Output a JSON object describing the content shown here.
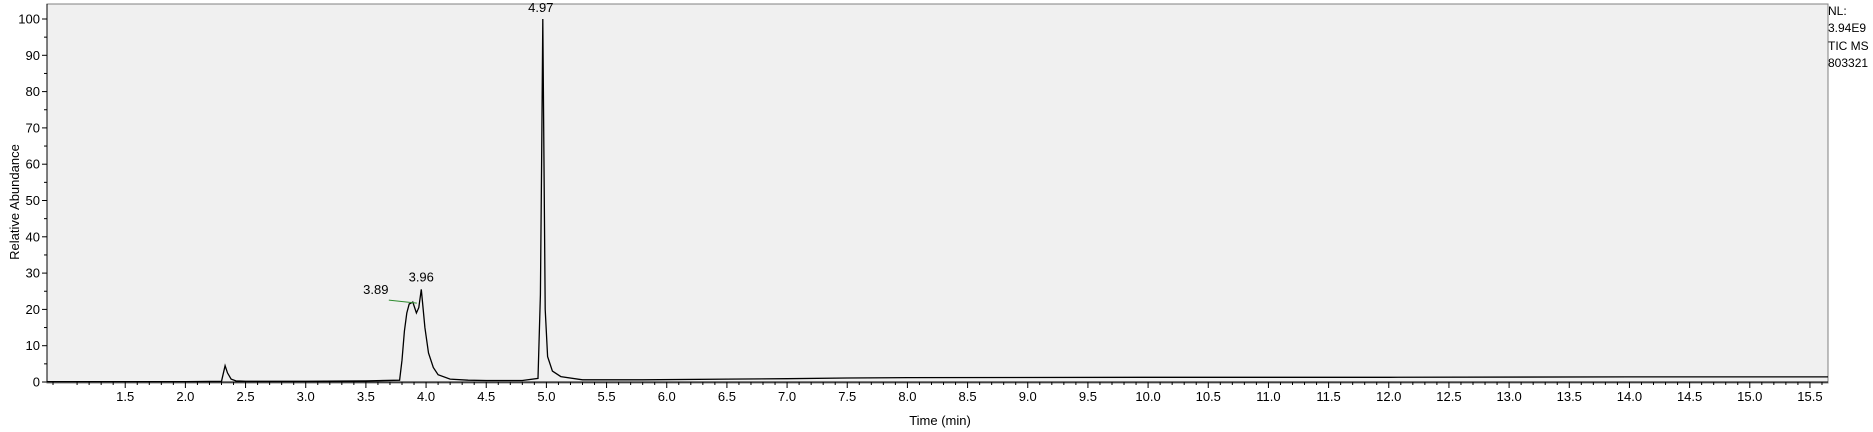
{
  "header": {
    "info_lines": [
      "NL:",
      "3.94E9",
      "TIC  MS",
      "803321"
    ]
  },
  "chart_data": {
    "type": "line",
    "title": "",
    "xlabel": "Time (min)",
    "ylabel": "Relative Abundance",
    "xlim": [
      0.85,
      15.65
    ],
    "ylim": [
      0,
      100
    ],
    "x_ticks": [
      1.5,
      2.0,
      2.5,
      3.0,
      3.5,
      4.0,
      4.5,
      5.0,
      5.5,
      6.0,
      6.5,
      7.0,
      7.5,
      8.0,
      8.5,
      9.0,
      9.5,
      10.0,
      10.5,
      11.0,
      11.5,
      12.0,
      12.5,
      13.0,
      13.5,
      14.0,
      14.5,
      15.0,
      15.5
    ],
    "x_tick_labels": [
      "1.5",
      "2.0",
      "2.5",
      "3.0",
      "3.5",
      "4.0",
      "4.5",
      "5.0",
      "5.5",
      "6.0",
      "6.5",
      "7.0",
      "7.5",
      "8.0",
      "8.5",
      "9.0",
      "9.5",
      "10.0",
      "10.5",
      "11.0",
      "11.5",
      "12.0",
      "12.5",
      "13.0",
      "13.5",
      "14.0",
      "14.5",
      "15.0",
      "15.5"
    ],
    "y_ticks": [
      0,
      10,
      20,
      30,
      40,
      50,
      60,
      70,
      80,
      90,
      100
    ],
    "y_tick_labels": [
      "0",
      "10",
      "20",
      "30",
      "40",
      "50",
      "60",
      "70",
      "80",
      "90",
      "100"
    ],
    "grid": false,
    "series": [
      {
        "x": [
          0.85,
          2.0,
          2.3,
          2.33,
          2.35,
          2.38,
          2.42,
          2.5,
          3.0,
          3.5,
          3.78,
          3.8,
          3.82,
          3.84,
          3.86,
          3.89,
          3.92,
          3.94,
          3.96,
          3.97,
          3.99,
          4.02,
          4.06,
          4.1,
          4.2,
          4.35,
          4.5,
          4.8,
          4.93,
          4.95,
          4.96,
          4.97,
          4.98,
          4.99,
          5.01,
          5.05,
          5.12,
          5.3,
          5.8,
          6.5,
          7.0,
          7.5,
          8.0,
          10.0,
          12.0,
          14.0,
          15.65
        ],
        "y": [
          0.1,
          0.1,
          0.2,
          4.5,
          2.5,
          0.8,
          0.3,
          0.2,
          0.2,
          0.3,
          0.5,
          6.0,
          14.0,
          19.0,
          21.5,
          22.0,
          19.0,
          20.5,
          25.5,
          22.0,
          15.0,
          8.0,
          4.0,
          2.0,
          0.8,
          0.5,
          0.4,
          0.4,
          1.0,
          24.0,
          60.0,
          100.0,
          60.0,
          20.0,
          7.0,
          3.0,
          1.5,
          0.6,
          0.6,
          0.8,
          0.9,
          1.1,
          1.2,
          1.3,
          1.3,
          1.4,
          1.4
        ]
      }
    ],
    "annotations": [
      {
        "text": "4.97",
        "x": 4.97,
        "y": 100.0
      },
      {
        "text": "3.96",
        "x": 3.96,
        "y": 25.5
      },
      {
        "text": "3.89",
        "x": 3.89,
        "y": 22.0
      }
    ]
  }
}
